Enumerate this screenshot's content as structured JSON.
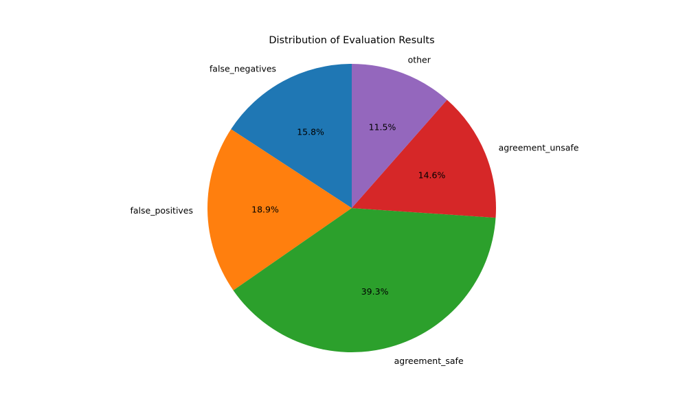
{
  "chart_data": {
    "type": "pie",
    "title": "Distribution of Evaluation Results",
    "start_angle_deg": 90,
    "direction": "counterclockwise",
    "slices": [
      {
        "name": "false_negatives",
        "value": 15.8,
        "pct_label": "15.8%",
        "color": "#1f77b4"
      },
      {
        "name": "false_positives",
        "value": 18.9,
        "pct_label": "18.9%",
        "color": "#ff7f0e"
      },
      {
        "name": "agreement_safe",
        "value": 39.3,
        "pct_label": "39.3%",
        "color": "#2ca02c"
      },
      {
        "name": "agreement_unsafe",
        "value": 14.6,
        "pct_label": "14.6%",
        "color": "#d62728"
      },
      {
        "name": "other",
        "value": 11.5,
        "pct_label": "11.5%",
        "color": "#9467bd"
      }
    ]
  }
}
